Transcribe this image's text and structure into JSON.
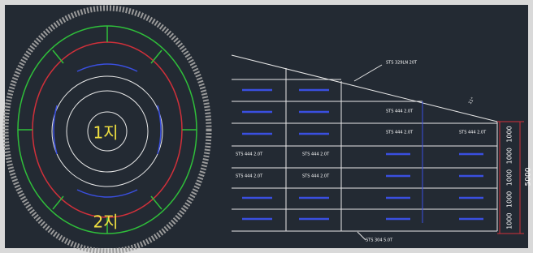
{
  "plan": {
    "labels": [
      "1지",
      "2지"
    ]
  },
  "section": {
    "top_plate": "STS 329LN 20T",
    "bottom_plate": "STS 304 5.0T",
    "angle": "11°",
    "liner_labels": [
      "STS 444 2.0T",
      "STS 444 2.0T",
      "STS 444 2.0T",
      "STS 444 2.0T",
      "STS 444 2.0T",
      "STS 444 2.0T",
      "STS 444 2.0T"
    ],
    "dimensions": [
      "1000",
      "1000",
      "1000",
      "1000",
      "1000"
    ],
    "total": "5000"
  }
}
